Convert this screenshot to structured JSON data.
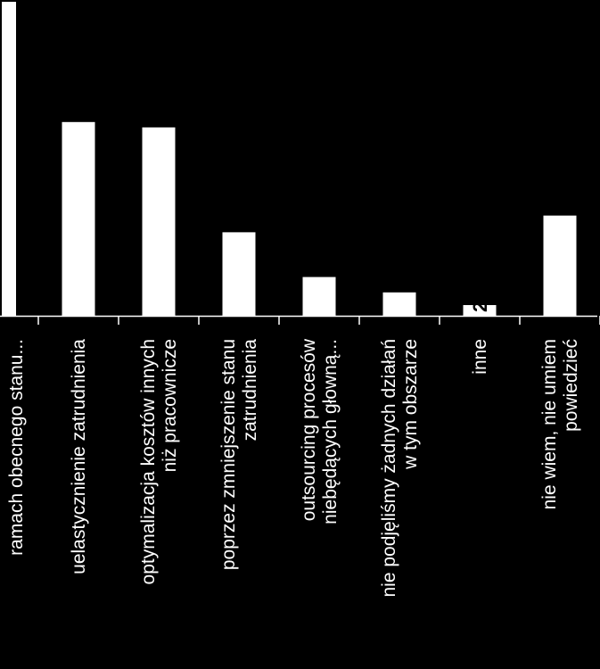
{
  "chart_data": {
    "type": "bar",
    "orientation": "vertical",
    "categories": [
      [
        "ramach obecnego stanu..."
      ],
      [
        "uelastycznienie zatrudnienia"
      ],
      [
        "optymalizacja kosztów innych",
        "niż pracownicze"
      ],
      [
        "poprzez zmniejszenie stanu",
        "zatrudnienia"
      ],
      [
        "outsourcing procesów",
        "niebędących głowną..."
      ],
      [
        "nie podjęliśmy żadnych działań",
        "w tym obszarze"
      ],
      [
        "inne"
      ],
      [
        "nie wiem, nie umiem",
        "powiedzieć"
      ]
    ],
    "values": [
      47,
      29,
      28.2,
      12.5,
      5.8,
      3.5,
      1.6,
      15
    ],
    "data_labels": [
      "",
      "",
      "",
      "",
      "",
      "",
      "2",
      ""
    ],
    "ylim": [
      0,
      47
    ],
    "grid": false,
    "legend": "none",
    "colors": {
      "background": "#000000",
      "bar": "#ffffff",
      "axis": "#ffffff",
      "text": "#ffffff",
      "data_label": "#000000"
    }
  }
}
